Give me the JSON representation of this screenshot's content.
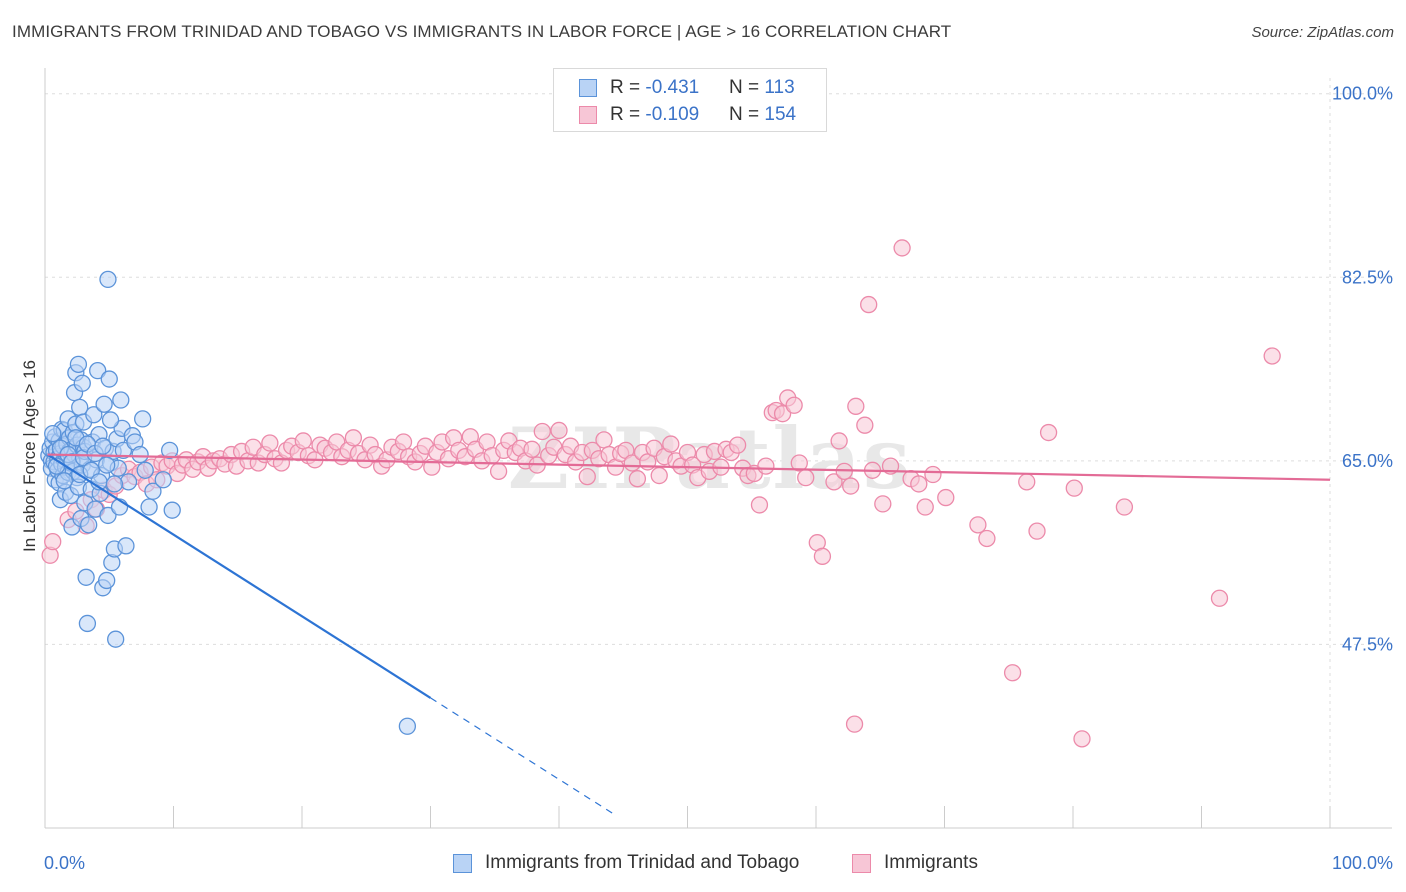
{
  "title": "IMMIGRANTS FROM TRINIDAD AND TOBAGO VS IMMIGRANTS IN LABOR FORCE | AGE > 16 CORRELATION CHART",
  "source": "Source: ZipAtlas.com",
  "watermark": "ZIPatlas",
  "colors": {
    "blue_fill": "#b9d3f5",
    "blue_stroke": "#5b93d9",
    "blue_line": "#2d74d4",
    "pink_fill": "#f7c6d6",
    "pink_stroke": "#ec8aaa",
    "pink_line": "#e36b96",
    "axis_label": "#3b73c8",
    "grid": "#dddddd"
  },
  "legend": {
    "rows": [
      {
        "r_label": "R = ",
        "r_value": "-0.431",
        "n_label": "N = ",
        "n_value": "113"
      },
      {
        "r_label": "R = ",
        "r_value": "-0.109",
        "n_label": "N = ",
        "n_value": "154"
      }
    ]
  },
  "bottom_legend": {
    "series1": "Immigrants from Trinidad and Tobago",
    "series2": "Immigrants"
  },
  "chart_data": {
    "type": "scatter",
    "title": "IMMIGRANTS FROM TRINIDAD AND TOBAGO VS IMMIGRANTS IN LABOR FORCE | AGE > 16 CORRELATION CHART",
    "xlabel": "",
    "ylabel": "In Labor Force | Age > 16",
    "xlim": [
      0,
      100
    ],
    "ylim": [
      30.0,
      101.5
    ],
    "x_tick_labels": [
      "0.0%",
      "100.0%"
    ],
    "y_ticks": [
      47.5,
      65.0,
      82.5,
      100.0
    ],
    "y_tick_labels": [
      "47.5%",
      "65.0%",
      "82.5%",
      "100.0%"
    ],
    "grid": true,
    "legend_position": "top-center",
    "series": [
      {
        "name": "Immigrants from Trinidad and Tobago",
        "color": "#5b93d9",
        "trend": {
          "x": [
            0.2,
            30
          ],
          "y": [
            65.6,
            42.4
          ],
          "dashed_to": {
            "x": [
              30,
              44.3
            ],
            "y": [
              42.4,
              31.3
            ]
          }
        },
        "points": [
          [
            0.3,
            65.5
          ],
          [
            0.4,
            66.2
          ],
          [
            0.5,
            65.0
          ],
          [
            0.5,
            64.3
          ],
          [
            0.6,
            66.8
          ],
          [
            0.7,
            65.8
          ],
          [
            0.7,
            64.9
          ],
          [
            0.8,
            67.3
          ],
          [
            0.8,
            63.2
          ],
          [
            0.9,
            66.0
          ],
          [
            1.0,
            65.2
          ],
          [
            1.0,
            64.1
          ],
          [
            1.1,
            66.9
          ],
          [
            1.1,
            62.9
          ],
          [
            1.2,
            65.7
          ],
          [
            1.2,
            61.3
          ],
          [
            1.3,
            68.0
          ],
          [
            1.3,
            64.7
          ],
          [
            1.4,
            66.4
          ],
          [
            1.4,
            63.6
          ],
          [
            1.5,
            65.1
          ],
          [
            1.5,
            67.9
          ],
          [
            1.6,
            64.4
          ],
          [
            1.6,
            62.0
          ],
          [
            1.7,
            66.6
          ],
          [
            1.7,
            65.4
          ],
          [
            1.8,
            63.9
          ],
          [
            1.8,
            69.0
          ],
          [
            1.9,
            67.2
          ],
          [
            1.9,
            65.9
          ],
          [
            2.0,
            64.8
          ],
          [
            2.0,
            61.7
          ],
          [
            2.1,
            66.1
          ],
          [
            2.1,
            58.7
          ],
          [
            2.2,
            67.7
          ],
          [
            2.2,
            64.0
          ],
          [
            2.3,
            65.6
          ],
          [
            2.3,
            71.5
          ],
          [
            2.4,
            73.4
          ],
          [
            2.4,
            68.5
          ],
          [
            2.5,
            66.5
          ],
          [
            2.5,
            63.4
          ],
          [
            2.6,
            62.5
          ],
          [
            2.6,
            74.2
          ],
          [
            2.7,
            65.3
          ],
          [
            2.7,
            70.1
          ],
          [
            2.8,
            67.0
          ],
          [
            2.8,
            59.5
          ],
          [
            2.9,
            64.6
          ],
          [
            2.9,
            72.4
          ],
          [
            3.0,
            66.3
          ],
          [
            3.0,
            68.7
          ],
          [
            3.1,
            61.0
          ],
          [
            3.1,
            65.9
          ],
          [
            3.2,
            53.9
          ],
          [
            3.3,
            49.5
          ],
          [
            3.4,
            58.9
          ],
          [
            3.5,
            64.2
          ],
          [
            3.6,
            62.3
          ],
          [
            3.7,
            66.8
          ],
          [
            3.8,
            69.4
          ],
          [
            3.9,
            60.4
          ],
          [
            4.0,
            65.1
          ],
          [
            4.1,
            73.6
          ],
          [
            4.2,
            67.5
          ],
          [
            4.3,
            61.9
          ],
          [
            4.4,
            63.6
          ],
          [
            4.5,
            52.9
          ],
          [
            4.6,
            70.4
          ],
          [
            4.7,
            66.2
          ],
          [
            4.8,
            53.6
          ],
          [
            4.9,
            59.8
          ],
          [
            5.0,
            72.8
          ],
          [
            5.1,
            64.8
          ],
          [
            5.2,
            55.3
          ],
          [
            5.3,
            65.9
          ],
          [
            5.4,
            56.6
          ],
          [
            5.5,
            48.0
          ],
          [
            5.6,
            67.1
          ],
          [
            5.7,
            64.3
          ],
          [
            5.8,
            60.6
          ],
          [
            5.9,
            70.8
          ],
          [
            6.0,
            68.1
          ],
          [
            6.1,
            66.0
          ],
          [
            6.3,
            56.9
          ],
          [
            6.5,
            63.0
          ],
          [
            6.8,
            67.4
          ],
          [
            7.0,
            66.8
          ],
          [
            7.4,
            65.6
          ],
          [
            7.6,
            69.0
          ],
          [
            7.8,
            64.1
          ],
          [
            8.1,
            60.6
          ],
          [
            8.4,
            62.1
          ],
          [
            9.2,
            63.2
          ],
          [
            9.7,
            66.0
          ],
          [
            9.9,
            60.3
          ],
          [
            4.9,
            82.3
          ],
          [
            28.2,
            39.7
          ],
          [
            0.6,
            67.6
          ],
          [
            0.9,
            64.5
          ],
          [
            1.2,
            66.2
          ],
          [
            1.5,
            63.1
          ],
          [
            1.8,
            65.6
          ],
          [
            2.1,
            64.9
          ],
          [
            2.4,
            67.2
          ],
          [
            2.7,
            63.7
          ],
          [
            3.0,
            65.3
          ],
          [
            3.3,
            66.6
          ],
          [
            3.6,
            64.1
          ],
          [
            3.9,
            65.7
          ],
          [
            4.2,
            63.0
          ],
          [
            4.5,
            66.4
          ],
          [
            4.8,
            64.6
          ],
          [
            5.1,
            68.9
          ],
          [
            5.4,
            62.8
          ]
        ]
      },
      {
        "name": "Immigrants",
        "color": "#ec8aaa",
        "trend": {
          "x": [
            0.2,
            100
          ],
          "y": [
            65.6,
            63.2
          ]
        },
        "points": [
          [
            0.4,
            56.0
          ],
          [
            0.6,
            57.3
          ],
          [
            1.8,
            59.4
          ],
          [
            2.4,
            60.2
          ],
          [
            3.2,
            58.8
          ],
          [
            3.6,
            61.3
          ],
          [
            4.0,
            60.4
          ],
          [
            4.6,
            62.2
          ],
          [
            5.0,
            61.8
          ],
          [
            5.5,
            62.6
          ],
          [
            6.0,
            63.6
          ],
          [
            6.5,
            64.2
          ],
          [
            7.0,
            63.5
          ],
          [
            7.4,
            63.9
          ],
          [
            7.9,
            62.8
          ],
          [
            8.3,
            64.4
          ],
          [
            8.7,
            63.2
          ],
          [
            9.1,
            64.8
          ],
          [
            9.5,
            64.5
          ],
          [
            9.9,
            65.0
          ],
          [
            10.3,
            63.8
          ],
          [
            10.7,
            64.6
          ],
          [
            11.0,
            65.1
          ],
          [
            11.5,
            64.2
          ],
          [
            11.9,
            64.9
          ],
          [
            12.3,
            65.4
          ],
          [
            12.7,
            64.3
          ],
          [
            13.1,
            65.0
          ],
          [
            13.6,
            65.2
          ],
          [
            14.0,
            64.7
          ],
          [
            14.5,
            65.6
          ],
          [
            14.9,
            64.5
          ],
          [
            15.3,
            65.9
          ],
          [
            15.8,
            65.0
          ],
          [
            16.2,
            66.3
          ],
          [
            16.6,
            64.8
          ],
          [
            17.1,
            65.6
          ],
          [
            17.5,
            66.7
          ],
          [
            17.9,
            65.2
          ],
          [
            18.4,
            64.8
          ],
          [
            18.8,
            66.0
          ],
          [
            19.2,
            66.4
          ],
          [
            19.7,
            65.8
          ],
          [
            20.1,
            66.9
          ],
          [
            20.5,
            65.5
          ],
          [
            21.0,
            65.1
          ],
          [
            21.4,
            66.5
          ],
          [
            21.8,
            66.2
          ],
          [
            22.3,
            65.8
          ],
          [
            22.7,
            66.8
          ],
          [
            23.1,
            65.4
          ],
          [
            23.6,
            66.0
          ],
          [
            24.0,
            67.2
          ],
          [
            24.4,
            65.7
          ],
          [
            24.9,
            65.1
          ],
          [
            25.3,
            66.5
          ],
          [
            25.7,
            65.6
          ],
          [
            26.2,
            64.5
          ],
          [
            26.6,
            65.1
          ],
          [
            27.0,
            66.3
          ],
          [
            27.5,
            65.9
          ],
          [
            27.9,
            66.8
          ],
          [
            28.3,
            65.4
          ],
          [
            28.8,
            64.9
          ],
          [
            29.2,
            65.7
          ],
          [
            29.6,
            66.4
          ],
          [
            30.1,
            64.4
          ],
          [
            30.5,
            65.8
          ],
          [
            30.9,
            66.8
          ],
          [
            31.4,
            65.2
          ],
          [
            31.8,
            67.2
          ],
          [
            32.2,
            66.0
          ],
          [
            32.7,
            65.4
          ],
          [
            33.1,
            67.3
          ],
          [
            33.5,
            66.1
          ],
          [
            34.0,
            65.0
          ],
          [
            34.4,
            66.8
          ],
          [
            34.8,
            65.5
          ],
          [
            35.3,
            64.0
          ],
          [
            35.7,
            66.0
          ],
          [
            36.1,
            66.9
          ],
          [
            36.6,
            65.8
          ],
          [
            37.0,
            66.2
          ],
          [
            37.4,
            65.0
          ],
          [
            37.9,
            66.1
          ],
          [
            38.3,
            64.6
          ],
          [
            38.7,
            67.8
          ],
          [
            39.2,
            65.5
          ],
          [
            39.6,
            66.3
          ],
          [
            40.0,
            67.9
          ],
          [
            40.5,
            65.6
          ],
          [
            40.9,
            66.4
          ],
          [
            41.3,
            64.9
          ],
          [
            41.8,
            65.8
          ],
          [
            42.2,
            63.5
          ],
          [
            42.6,
            66.0
          ],
          [
            43.1,
            65.2
          ],
          [
            43.5,
            67.0
          ],
          [
            43.9,
            65.6
          ],
          [
            44.4,
            64.4
          ],
          [
            44.8,
            65.7
          ],
          [
            45.2,
            66.0
          ],
          [
            45.7,
            64.8
          ],
          [
            46.1,
            63.3
          ],
          [
            46.5,
            65.8
          ],
          [
            46.9,
            64.9
          ],
          [
            47.4,
            66.2
          ],
          [
            47.8,
            63.6
          ],
          [
            48.2,
            65.4
          ],
          [
            48.7,
            66.6
          ],
          [
            49.1,
            65.0
          ],
          [
            49.5,
            64.5
          ],
          [
            50.0,
            65.8
          ],
          [
            50.4,
            64.6
          ],
          [
            50.8,
            63.4
          ],
          [
            51.3,
            65.6
          ],
          [
            51.7,
            64.0
          ],
          [
            52.1,
            65.9
          ],
          [
            52.6,
            64.4
          ],
          [
            53.0,
            66.1
          ],
          [
            53.4,
            65.8
          ],
          [
            53.9,
            66.5
          ],
          [
            54.3,
            64.3
          ],
          [
            54.7,
            63.6
          ],
          [
            55.2,
            63.8
          ],
          [
            55.6,
            60.8
          ],
          [
            56.1,
            64.5
          ],
          [
            56.6,
            69.6
          ],
          [
            56.9,
            69.8
          ],
          [
            57.4,
            69.5
          ],
          [
            57.8,
            71.0
          ],
          [
            58.3,
            70.3
          ],
          [
            58.7,
            64.8
          ],
          [
            59.2,
            63.4
          ],
          [
            60.1,
            57.2
          ],
          [
            60.5,
            55.9
          ],
          [
            61.4,
            63.0
          ],
          [
            61.8,
            66.9
          ],
          [
            62.2,
            64.0
          ],
          [
            62.7,
            62.6
          ],
          [
            63.1,
            70.2
          ],
          [
            63.8,
            68.4
          ],
          [
            64.4,
            64.1
          ],
          [
            65.2,
            60.9
          ],
          [
            65.8,
            64.5
          ],
          [
            66.7,
            85.3
          ],
          [
            67.4,
            63.3
          ],
          [
            68.0,
            62.8
          ],
          [
            68.5,
            60.6
          ],
          [
            69.1,
            63.7
          ],
          [
            70.1,
            61.5
          ],
          [
            72.6,
            58.9
          ],
          [
            73.3,
            57.6
          ],
          [
            75.3,
            44.8
          ],
          [
            77.2,
            58.3
          ],
          [
            80.1,
            62.4
          ],
          [
            80.7,
            38.5
          ],
          [
            84.0,
            60.6
          ],
          [
            91.4,
            51.9
          ],
          [
            95.5,
            75.0
          ],
          [
            76.4,
            63.0
          ],
          [
            78.1,
            67.7
          ],
          [
            64.1,
            79.9
          ],
          [
            63.0,
            39.9
          ]
        ]
      }
    ]
  }
}
